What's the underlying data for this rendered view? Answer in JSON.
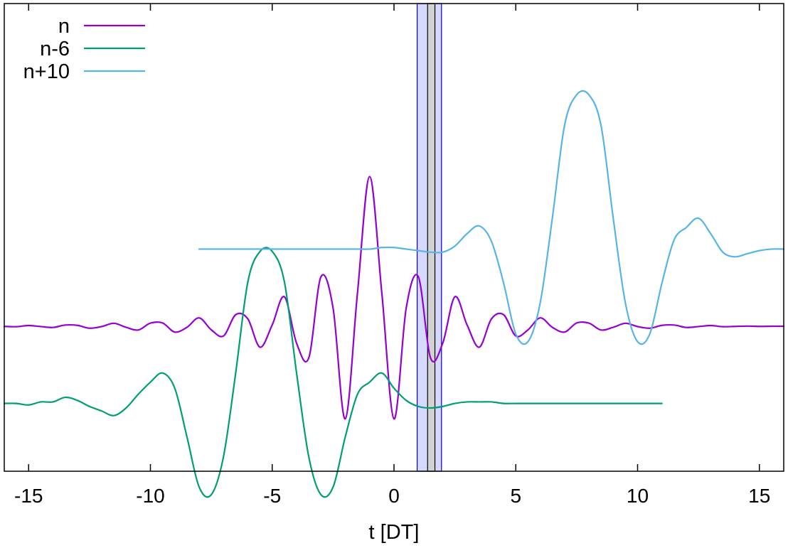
{
  "chart_data": {
    "type": "line",
    "title": "",
    "xlabel": "t [DT]",
    "ylabel": "",
    "xlim": [
      -16,
      16
    ],
    "ylim": [
      -0.62,
      1.38
    ],
    "grid": false,
    "legend_position": "top-left",
    "x_ticks": [
      -15,
      -10,
      -5,
      0,
      5,
      10,
      15
    ],
    "x_tick_labels": [
      "-15",
      "-10",
      "-5",
      "0",
      "5",
      "10",
      "15"
    ],
    "bands": [
      {
        "x0": 0.95,
        "x1": 1.95,
        "color": "#d6d8ff",
        "edge": "#0000cc"
      },
      {
        "x0": 1.38,
        "x1": 1.68,
        "color": "#d2d2d2",
        "edge": "#000000"
      }
    ],
    "series": [
      {
        "name": "n",
        "color": "#9400d3",
        "offset": 0,
        "amplitude": 0.64,
        "x": [
          -16,
          -15.5,
          -15,
          -14.5,
          -14,
          -13.5,
          -13,
          -12.5,
          -12,
          -11.5,
          -11,
          -10.5,
          -10,
          -9.5,
          -9,
          -8.5,
          -8,
          -7.5,
          -7,
          -6.5,
          -6,
          -5.5,
          -5,
          -4.5,
          -4,
          -3.5,
          -3,
          -2.5,
          -2,
          -1.5,
          -1,
          -0.5,
          0,
          0.5,
          1,
          1.5,
          2,
          2.5,
          3,
          3.5,
          4,
          4.5,
          5,
          5.5,
          6,
          6.5,
          7,
          7.5,
          8,
          8.5,
          9,
          9.5,
          10,
          10.5,
          11,
          11.5,
          12,
          12.5,
          13,
          13.5,
          14,
          14.5,
          15,
          15.5,
          16
        ],
        "y": [
          -0.001,
          -0.003,
          0.005,
          -0.002,
          -0.008,
          0.008,
          0.006,
          -0.013,
          -0.002,
          0.02,
          -0.007,
          -0.025,
          0.021,
          0.022,
          -0.039,
          -0.007,
          0.056,
          -0.024,
          -0.065,
          0.077,
          0.049,
          -0.14,
          0.009,
          0.197,
          -0.113,
          -0.212,
          0.33,
          0.12,
          -0.619,
          0.222,
          1.0,
          0.222,
          -0.619,
          0.12,
          0.33,
          -0.212,
          -0.113,
          0.197,
          0.009,
          -0.14,
          0.049,
          0.077,
          -0.065,
          -0.024,
          0.056,
          -0.007,
          -0.039,
          0.022,
          0.021,
          -0.025,
          -0.007,
          0.02,
          -0.002,
          -0.013,
          0.006,
          0.008,
          -0.008,
          -0.002,
          0.005,
          -0.003,
          -0.001,
          0.001,
          -0.001,
          0.0,
          0.0
        ]
      },
      {
        "name": "n-6",
        "color": "#009e73",
        "offset": -0.33,
        "amplitude": 0.65,
        "x": [
          -16,
          -15.5,
          -15,
          -14.5,
          -14,
          -13.5,
          -13,
          -12.5,
          -12,
          -11.5,
          -11,
          -10.5,
          -10,
          -9.5,
          -9,
          -8.5,
          -8,
          -7.5,
          -7,
          -6.5,
          -6,
          -5.5,
          -5,
          -4.5,
          -4,
          -3.5,
          -3,
          -2.5,
          -2,
          -1.5,
          -1,
          -0.5,
          0,
          0.5,
          1,
          1.5,
          2,
          2.5,
          3,
          3.5,
          4,
          4.5,
          5,
          5.5,
          6,
          6.5,
          7,
          7.5,
          8,
          8.5,
          9,
          9.5,
          10,
          10.5,
          11
        ],
        "y": [
          0.0,
          0.0,
          -0.01,
          0.01,
          0.01,
          0.04,
          0.02,
          -0.02,
          -0.05,
          -0.08,
          -0.03,
          0.06,
          0.14,
          0.2,
          0.1,
          -0.22,
          -0.55,
          -0.6,
          -0.35,
          0.2,
          0.8,
          1.0,
          1.0,
          0.8,
          0.2,
          -0.35,
          -0.6,
          -0.55,
          -0.22,
          0.06,
          0.14,
          0.2,
          0.1,
          0.02,
          -0.02,
          -0.03,
          -0.02,
          0.0,
          0.01,
          0.01,
          0.01,
          0.0,
          0.0,
          0.0,
          0.0,
          0.0,
          0.0,
          0.0,
          0.0,
          0.0,
          0.0,
          0.0,
          0.0,
          0.0,
          0.0
        ]
      },
      {
        "name": "n+10",
        "color": "#56b4e9",
        "offset": 0.33,
        "amplitude": 0.66,
        "x": [
          -8,
          -7.5,
          -7,
          -6.5,
          -6,
          -5.5,
          -5,
          -4.5,
          -4,
          -3.5,
          -3,
          -2.5,
          -2,
          -1.5,
          -1,
          -0.5,
          0,
          0.5,
          1,
          1.5,
          2,
          2.5,
          3,
          3.5,
          4,
          4.5,
          5,
          5.5,
          6,
          6.5,
          7,
          7.5,
          8,
          8.5,
          9,
          9.5,
          10,
          10.5,
          11,
          11.5,
          12,
          12.5,
          13,
          13.5,
          14,
          14.5,
          15,
          15.5,
          16
        ],
        "y": [
          0.0,
          0.0,
          0.0,
          0.0,
          0.0,
          0.0,
          0.0,
          0.0,
          0.0,
          0.0,
          0.0,
          0.0,
          0.0,
          0.0,
          0.0,
          0.01,
          0.01,
          0.0,
          -0.01,
          -0.02,
          -0.02,
          0.02,
          0.1,
          0.15,
          0.05,
          -0.22,
          -0.55,
          -0.6,
          -0.35,
          0.2,
          0.8,
          1.0,
          1.0,
          0.8,
          0.2,
          -0.35,
          -0.6,
          -0.55,
          -0.22,
          0.06,
          0.14,
          0.2,
          0.1,
          -0.02,
          -0.05,
          -0.03,
          -0.01,
          0.0,
          0.0
        ]
      }
    ]
  }
}
